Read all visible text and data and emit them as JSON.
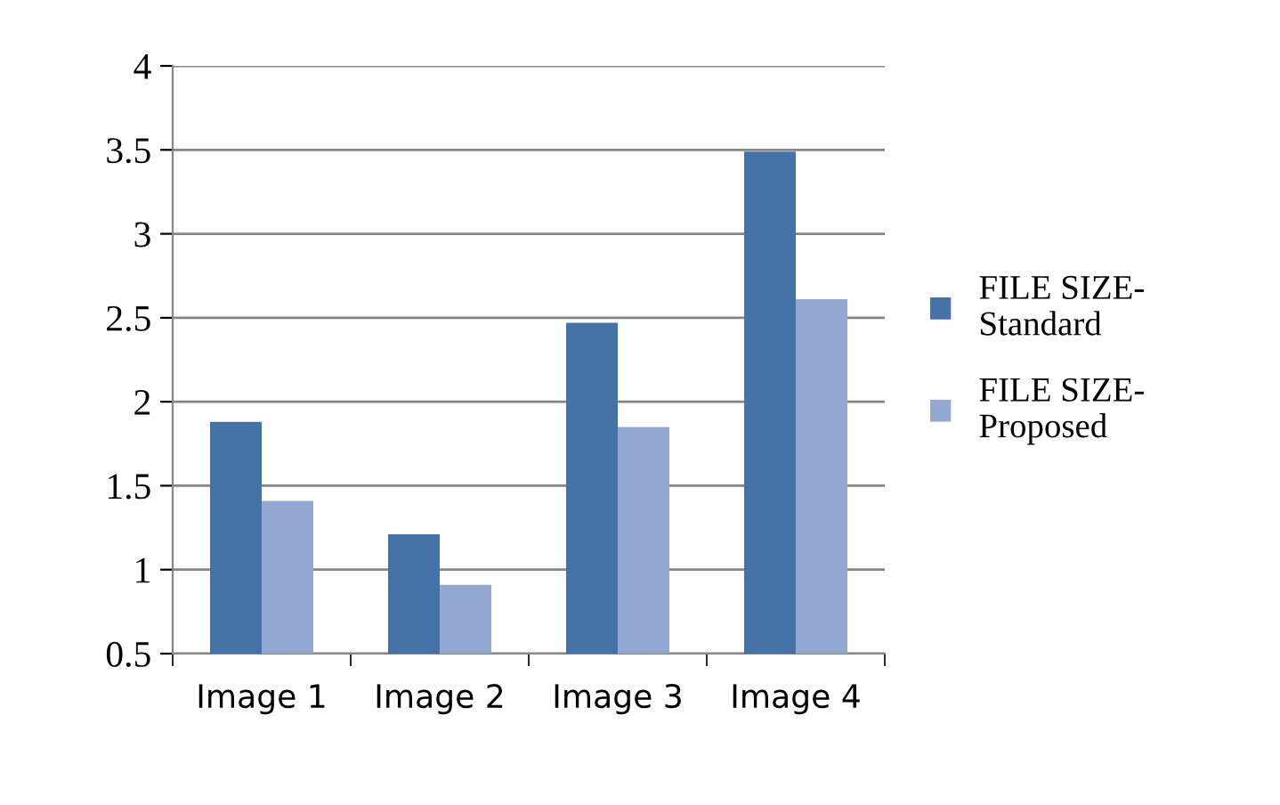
{
  "chart_data": {
    "type": "bar",
    "categories": [
      "Image 1",
      "Image 2",
      "Image 3",
      "Image 4"
    ],
    "series": [
      {
        "name": "FILE SIZE-\nStandard",
        "color": "#4572a7",
        "values": [
          1.88,
          1.21,
          2.47,
          3.49
        ]
      },
      {
        "name": "FILE SIZE-\nProposed",
        "color": "#93a9d1",
        "values": [
          1.41,
          0.91,
          1.85,
          2.61
        ]
      }
    ],
    "ylim": [
      0.5,
      4
    ],
    "yticks": [
      0.5,
      1,
      1.5,
      2,
      2.5,
      3,
      3.5,
      4
    ],
    "grid": "y",
    "legend": "right"
  }
}
